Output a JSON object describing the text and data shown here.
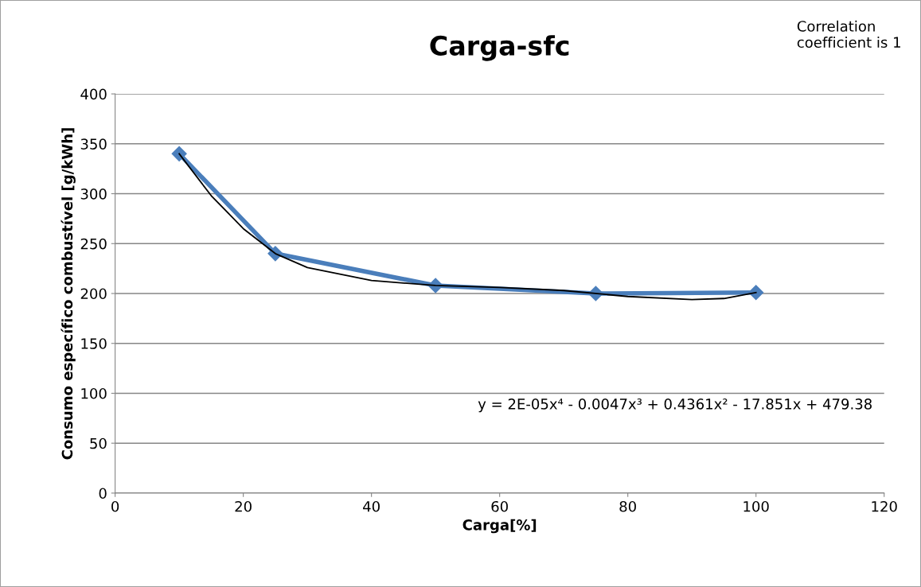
{
  "chart_data": {
    "type": "line",
    "title": "Carga-sfc",
    "xlabel": "Carga[%]",
    "ylabel": "Consumo específico combustível [g/kWh]",
    "xlim": [
      0,
      120
    ],
    "xticks": [
      0,
      20,
      40,
      60,
      80,
      100,
      120
    ],
    "ylim": [
      0,
      400
    ],
    "yticks": [
      0,
      50,
      100,
      150,
      200,
      250,
      300,
      350,
      400
    ],
    "grid": "y",
    "legend": false,
    "series": [
      {
        "color": "#4a7ebb",
        "marker": "diamond",
        "x": [
          10,
          25,
          50,
          75,
          100
        ],
        "values": [
          340,
          240,
          208,
          200,
          201
        ]
      },
      {
        "color": "#000000",
        "marker": "none",
        "x": [
          10,
          15,
          20,
          25,
          30,
          40,
          50,
          60,
          70,
          80,
          90,
          95,
          100
        ],
        "values": [
          340,
          298,
          265,
          240,
          226,
          213,
          208,
          206,
          203,
          197,
          194,
          195,
          201
        ]
      }
    ],
    "annotations": [
      "Correlation coefficient is 1",
      "y = 2E-05x⁴ - 0.0047x³ + 0.4361x² - 17.851x + 479.38"
    ]
  }
}
